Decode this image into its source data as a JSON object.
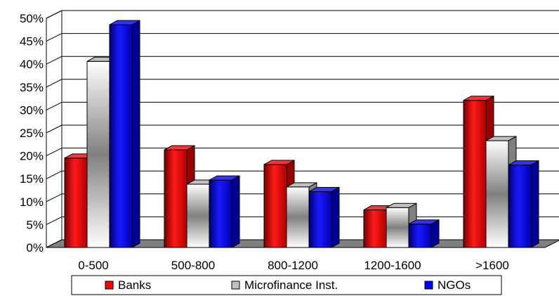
{
  "chart_data": {
    "type": "bar",
    "style": "3d-clustered-column",
    "categories": [
      "0-500",
      "500-800",
      "800-1200",
      "1200-1600",
      ">1600"
    ],
    "series": [
      {
        "name": "Banks",
        "values": [
          19.5,
          21.3,
          18.1,
          8.2,
          32.1
        ],
        "color": "#ff0000"
      },
      {
        "name": "Microfinance Inst.",
        "values": [
          40.6,
          13.8,
          13.2,
          8.7,
          23.3
        ],
        "color": "#808080"
      },
      {
        "name": "NGOs",
        "values": [
          48.6,
          14.7,
          12.2,
          5.1,
          18.0
        ],
        "color": "#0000ff"
      }
    ],
    "title": "",
    "xlabel": "",
    "ylabel": "",
    "ylim": [
      0,
      50
    ],
    "yticks": [
      "0%",
      "5%",
      "10%",
      "15%",
      "20%",
      "25%",
      "30%",
      "35%",
      "40%",
      "45%",
      "50%"
    ],
    "grid": true,
    "legend": "bottom"
  }
}
